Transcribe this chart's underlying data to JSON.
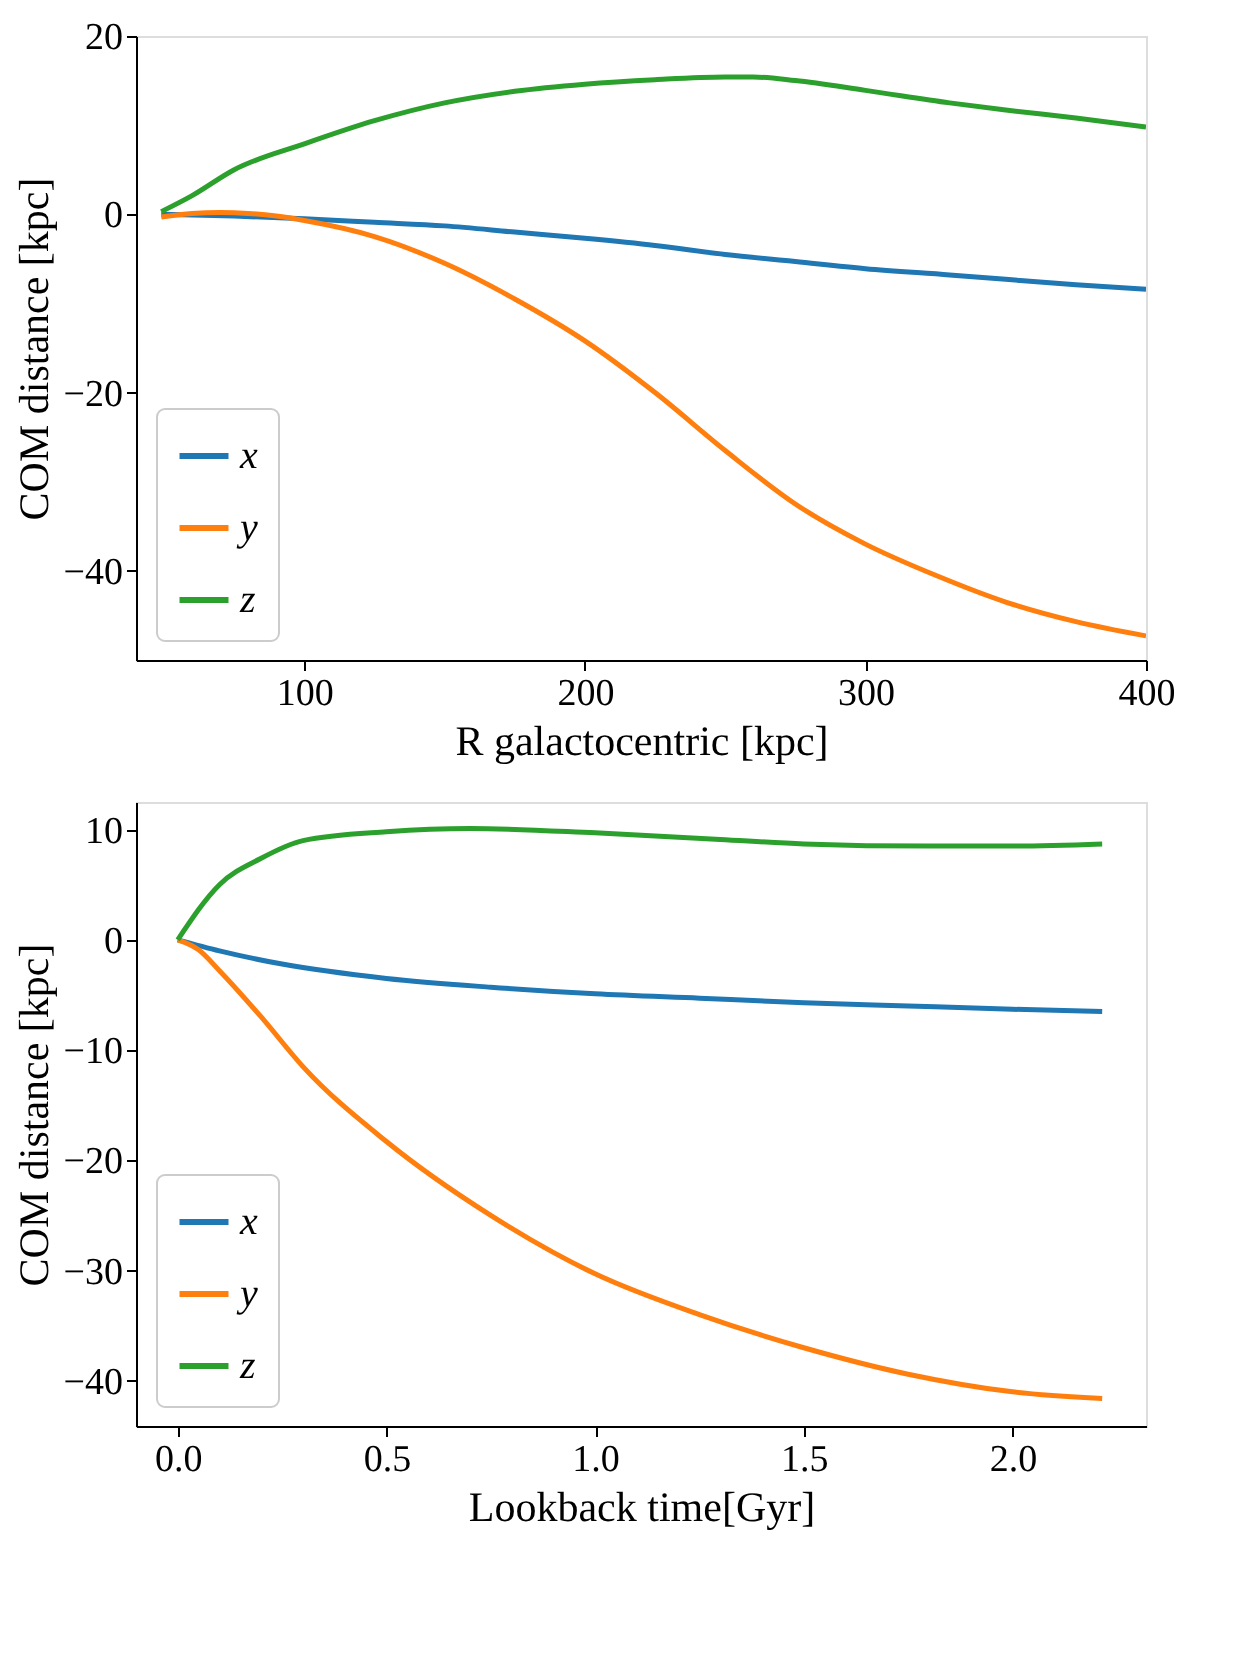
{
  "chart_data": [
    {
      "type": "line",
      "xlabel": "R galactocentric [kpc]",
      "ylabel": "COM distance [kpc]",
      "xlim": [
        40,
        400
      ],
      "ylim": [
        -50,
        20
      ],
      "xticks": [
        100,
        200,
        300,
        400
      ],
      "yticks": [
        -40,
        -20,
        0,
        20
      ],
      "legend": "bottom left",
      "grid": false,
      "series": [
        {
          "name": "x",
          "color": "#1f77b4",
          "x": [
            49,
            75,
            100,
            125,
            150,
            175,
            200,
            225,
            250,
            275,
            300,
            330,
            350,
            375,
            400
          ],
          "values": [
            0,
            -0.2,
            -0.5,
            -0.9,
            -1.3,
            -2.0,
            -2.7,
            -3.5,
            -4.5,
            -5.3,
            -6.1,
            -6.8,
            -7.3,
            -7.9,
            -8.4
          ]
        },
        {
          "name": "y",
          "color": "#ff7f0e",
          "x": [
            49,
            60,
            70,
            80,
            90,
            100,
            125,
            150,
            175,
            200,
            225,
            250,
            275,
            300,
            325,
            350,
            375,
            400
          ],
          "values": [
            -0.3,
            0.1,
            0.2,
            0.1,
            -0.2,
            -0.7,
            -2.5,
            -5.5,
            -9.5,
            -14.2,
            -20,
            -26.5,
            -32.5,
            -37,
            -40.5,
            -43.5,
            -45.7,
            -47.3
          ]
        },
        {
          "name": "z",
          "color": "#2ca02c",
          "x": [
            49,
            60,
            75,
            100,
            125,
            150,
            175,
            200,
            225,
            250,
            260,
            275,
            300,
            330,
            350,
            375,
            400
          ],
          "values": [
            0.3,
            2.1,
            5,
            7.9,
            10.5,
            12.5,
            13.8,
            14.6,
            15.1,
            15.4,
            15.4,
            15,
            13.9,
            12.5,
            11.7,
            10.8,
            9.8
          ]
        }
      ]
    },
    {
      "type": "line",
      "xlabel": "Lookback time[Gyr]",
      "ylabel": "COM distance [kpc]",
      "xlim": [
        -0.1,
        2.32
      ],
      "ylim": [
        -44.1,
        12.5
      ],
      "xticks": [
        {
          "value": 0,
          "label": "0.0"
        },
        0.5,
        {
          "value": 1,
          "label": "1.0"
        },
        1.5,
        {
          "value": 2,
          "label": "2.0"
        }
      ],
      "yticks": [
        -40,
        -30,
        -20,
        -10,
        0,
        10
      ],
      "legend": "bottom left",
      "grid": false,
      "series": [
        {
          "name": "x",
          "color": "#1f77b4",
          "x": [
            0,
            0.1,
            0.25,
            0.5,
            0.75,
            1.0,
            1.25,
            1.5,
            1.75,
            2.0,
            2.215
          ],
          "values": [
            0,
            -1.0,
            -2.2,
            -3.5,
            -4.3,
            -4.9,
            -5.3,
            -5.7,
            -6.0,
            -6.3,
            -6.5
          ]
        },
        {
          "name": "y",
          "color": "#ff7f0e",
          "x": [
            0,
            0.05,
            0.1,
            0.2,
            0.3,
            0.5,
            0.75,
            1.0,
            1.25,
            1.5,
            1.75,
            2.0,
            2.215
          ],
          "values": [
            0,
            -0.9,
            -2.8,
            -7,
            -11.5,
            -18.3,
            -25,
            -30.3,
            -34,
            -37,
            -39.4,
            -41,
            -41.6
          ]
        },
        {
          "name": "z",
          "color": "#2ca02c",
          "x": [
            0,
            0.1,
            0.2,
            0.3,
            0.5,
            0.7,
            1.0,
            1.3,
            1.5,
            1.8,
            2.0,
            2.215
          ],
          "values": [
            0,
            5,
            7.4,
            9,
            9.8,
            10.1,
            9.7,
            9.1,
            8.7,
            8.5,
            8.5,
            8.7
          ]
        }
      ]
    }
  ]
}
